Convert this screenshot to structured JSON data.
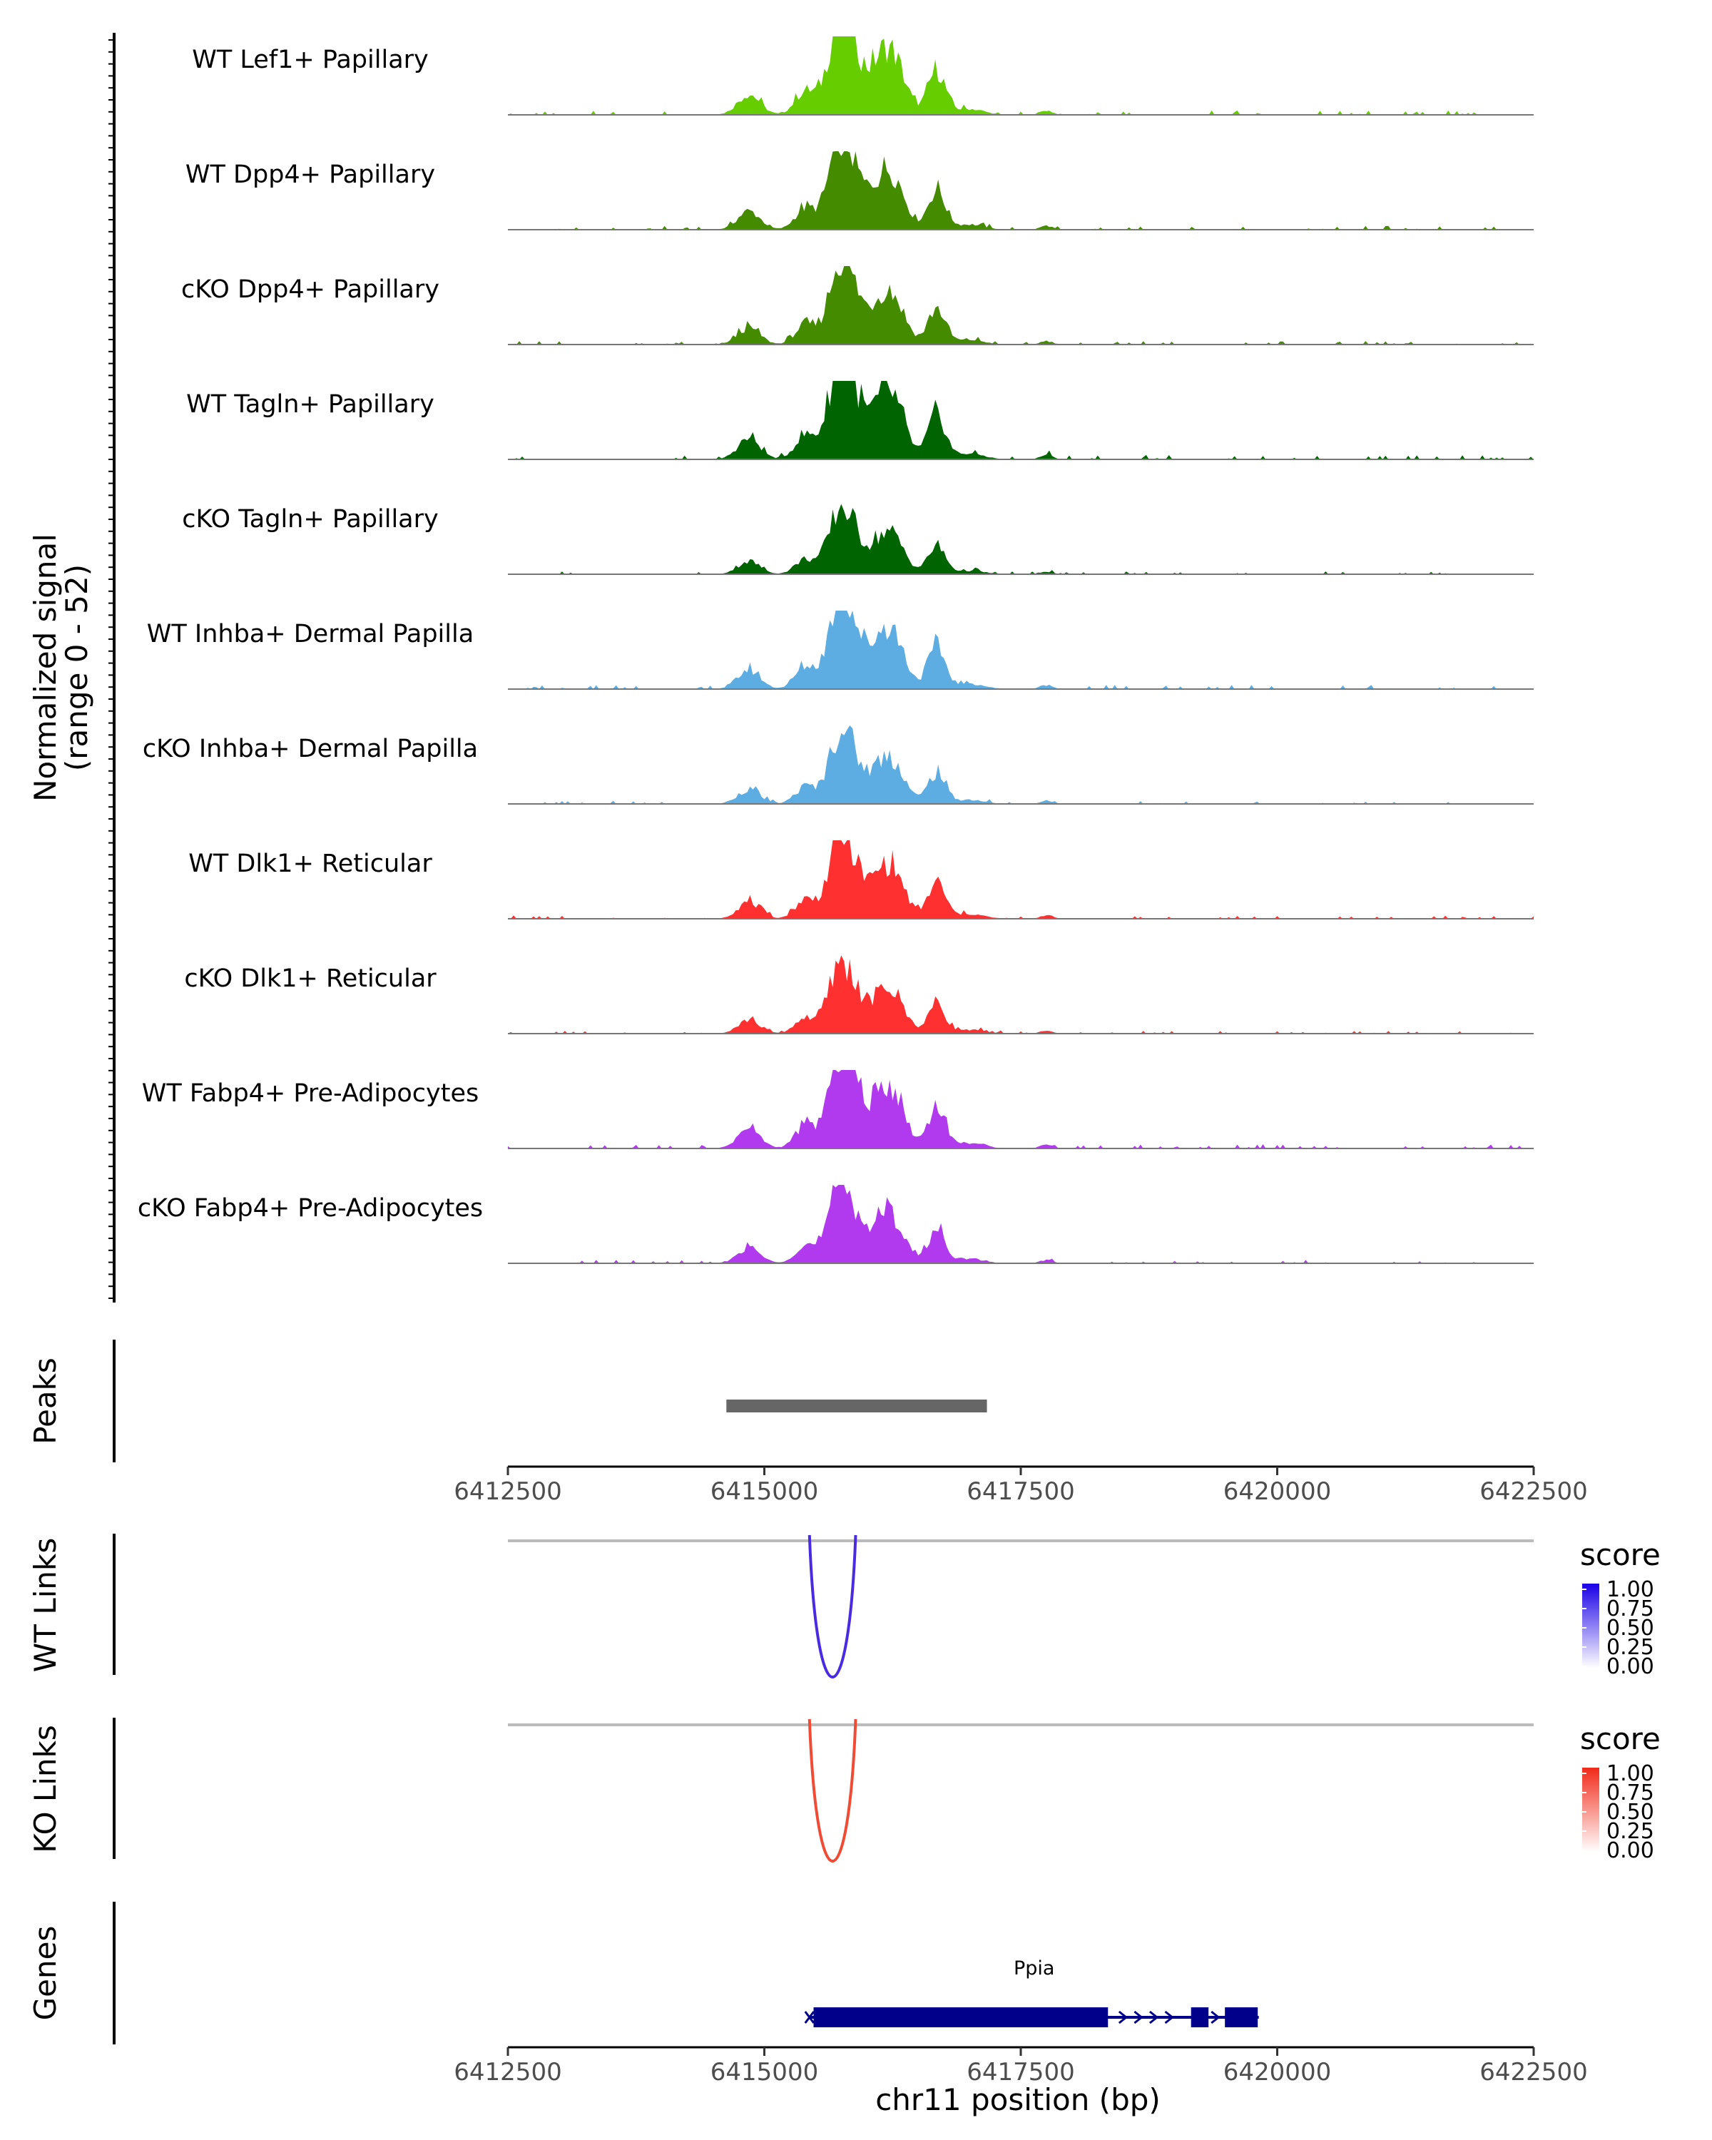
{
  "chart_data": {
    "type": "area",
    "title": "",
    "xlabel": "chr11 position (bp)",
    "region": {
      "chrom": "chr11",
      "start": 6412500,
      "end": 6422500
    },
    "x_ticks": [
      6412500,
      6415000,
      6417500,
      6420000,
      6422500
    ],
    "x_tick_labels": [
      "6412500",
      "6415000",
      "6417500",
      "6420000",
      "6422500"
    ],
    "coverage": {
      "ylabel": "Normalized signal",
      "ylabel_range": "(range 0 - 52)",
      "ylim": [
        0,
        52
      ],
      "peaks_template": [
        {
          "pos": 6414850,
          "width": 110,
          "height": 14
        },
        {
          "pos": 6415400,
          "width": 100,
          "height": 16
        },
        {
          "pos": 6415720,
          "width": 110,
          "height": 50
        },
        {
          "pos": 6415850,
          "width": 120,
          "height": 34
        },
        {
          "pos": 6416150,
          "width": 120,
          "height": 34
        },
        {
          "pos": 6416300,
          "width": 110,
          "height": 22
        },
        {
          "pos": 6416680,
          "width": 85,
          "height": 30
        },
        {
          "pos": 6417000,
          "width": 140,
          "height": 4
        },
        {
          "pos": 6417750,
          "width": 60,
          "height": 3
        }
      ],
      "tracks": [
        {
          "label": "WT Lef1+ Papillary",
          "color": "#66CD00",
          "scale": 0.98
        },
        {
          "label": "WT Dpp4+ Papillary",
          "color": "#458B00",
          "scale": 0.88
        },
        {
          "label": "cKO Dpp4+ Papillary",
          "color": "#458B00",
          "scale": 0.8
        },
        {
          "label": "WT Tagln+ Papillary",
          "color": "#006400",
          "scale": 1.0
        },
        {
          "label": "cKO Tagln+ Papillary",
          "color": "#006400",
          "scale": 0.62
        },
        {
          "label": "WT Inhba+ Dermal Papilla",
          "color": "#5DADE2",
          "scale": 0.92
        },
        {
          "label": "cKO Inhba+ Dermal Papilla",
          "color": "#5DADE2",
          "scale": 0.7
        },
        {
          "label": "WT Dlk1+ Reticular",
          "color": "#FF3030",
          "scale": 0.8
        },
        {
          "label": "cKO Dlk1+ Reticular",
          "color": "#FF3030",
          "scale": 0.66
        },
        {
          "label": "WT Fabp4+ Pre-Adipocytes",
          "color": "#B23AEE",
          "scale": 0.95
        },
        {
          "label": "cKO Fabp4+ Pre-Adipocytes",
          "color": "#B23AEE",
          "scale": 0.75
        }
      ]
    },
    "peaks": {
      "label": "Peaks",
      "regions": [
        {
          "start": 6414630,
          "end": 6417170
        }
      ],
      "color": "#666666"
    },
    "links": [
      {
        "label": "WT Links",
        "legend_title": "score",
        "legend_ticks": [
          "1.00",
          "0.75",
          "0.50",
          "0.25",
          "0.00"
        ],
        "color": "#4B2BE2",
        "gradient_color": "#1A00E6",
        "arcs": [
          {
            "start": 6415440,
            "end": 6415890,
            "score": 0.9
          }
        ]
      },
      {
        "label": "KO Links",
        "legend_title": "score",
        "legend_ticks": [
          "1.00",
          "0.75",
          "0.50",
          "0.25",
          "0.00"
        ],
        "color": "#F04C35",
        "gradient_color": "#F02A1A",
        "arcs": [
          {
            "start": 6415440,
            "end": 6415890,
            "score": 0.9
          }
        ]
      }
    ],
    "genes": {
      "label": "Genes",
      "items": [
        {
          "name": "Ppia",
          "start": 6415440,
          "end": 6419820,
          "strand": "+",
          "exons": [
            [
              6415480,
              6418350
            ],
            [
              6419160,
              6419330
            ],
            [
              6419490,
              6419810
            ]
          ]
        }
      ],
      "color": "#00008B"
    }
  }
}
